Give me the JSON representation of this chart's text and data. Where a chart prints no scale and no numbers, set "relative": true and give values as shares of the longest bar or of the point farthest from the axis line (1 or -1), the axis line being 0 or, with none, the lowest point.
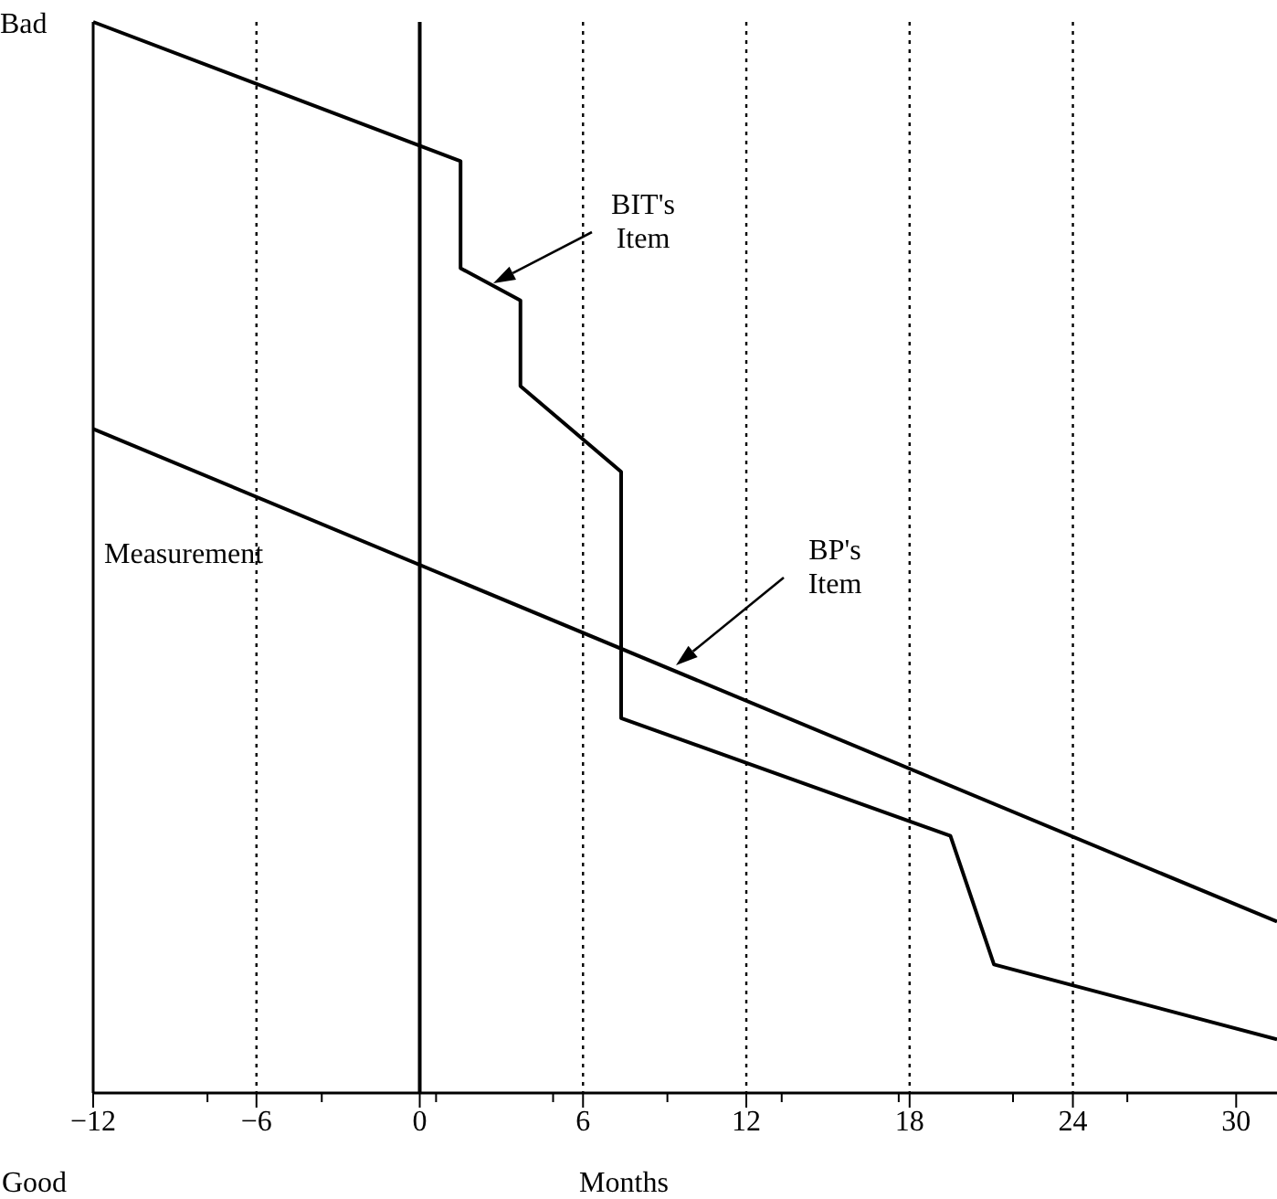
{
  "chart_data": {
    "type": "line",
    "relative": true,
    "xlabel": "Months",
    "ylabel": "Measurement",
    "xlim": [
      -12,
      31.5
    ],
    "xticks": [
      -12,
      {
        "value": -7.8,
        "label": null
      },
      -6,
      {
        "value": -3.6,
        "label": null
      },
      0,
      {
        "value": 0.6,
        "label": null
      },
      {
        "value": 4.9,
        "label": null
      },
      6,
      {
        "value": 9.1,
        "label": null
      },
      12,
      {
        "value": 13.3,
        "label": null
      },
      {
        "value": 17.6,
        "label": null
      },
      18,
      {
        "value": 21.8,
        "label": null
      },
      24,
      {
        "value": 26,
        "label": null
      },
      30
    ],
    "series": [
      {
        "color": "#000000",
        "x": [
          -12,
          1.5,
          1.5,
          3.7,
          3.7,
          7.4,
          7.4,
          19.5,
          21.1,
          31.5
        ],
        "values": [
          1,
          0.87,
          0.77,
          0.74,
          0.66,
          0.58,
          0.35,
          0.24,
          0.12,
          0.05
        ]
      },
      {
        "color": "#000000",
        "x": [
          -12,
          31.5
        ],
        "values": [
          0.62,
          0.16
        ]
      }
    ],
    "ref_lines": [
      {
        "axis": "x",
        "value": -6,
        "line_style": "dotted"
      },
      {
        "axis": "x",
        "value": 0,
        "line_style": "solid"
      },
      {
        "axis": "x",
        "value": 6,
        "line_style": "dotted"
      },
      {
        "axis": "x",
        "value": 12,
        "line_style": "dotted"
      },
      {
        "axis": "x",
        "value": 18,
        "line_style": "dotted"
      },
      {
        "axis": "x",
        "value": 24,
        "line_style": "dotted"
      }
    ],
    "annotations": [
      "Bad",
      "Good",
      "BIT's Item",
      "BP's Item"
    ],
    "marker": "none",
    "line_style": "solid"
  }
}
